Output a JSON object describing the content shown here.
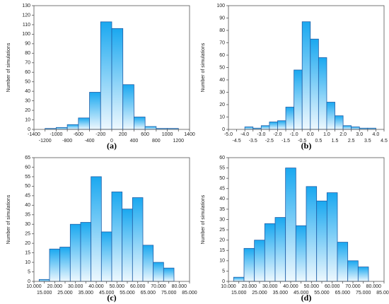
{
  "chart_data": [
    {
      "type": "histogram",
      "caption": "(a)",
      "ylabel": "Number of simulations",
      "color": "#1aa8f0",
      "bins": [
        -1200,
        -1000,
        -800,
        -600,
        -400,
        -200,
        0,
        200,
        400,
        600,
        800,
        1000,
        1200
      ],
      "values": [
        1,
        2,
        5,
        12,
        39,
        113,
        106,
        47,
        13,
        3,
        1,
        1
      ],
      "xlim": [
        -1400,
        1400
      ],
      "xticks": [
        -1400,
        -1200,
        -1000,
        -800,
        -600,
        -400,
        -200,
        0,
        200,
        400,
        600,
        800,
        1000,
        1200,
        1400
      ],
      "ylim": [
        0,
        130
      ],
      "yticks": [
        0,
        10,
        20,
        30,
        40,
        50,
        60,
        70,
        80,
        90,
        100,
        110,
        120,
        130
      ]
    },
    {
      "type": "histogram",
      "caption": "(b)",
      "ylabel": "Number of simulations",
      "color": "#1aa8f0",
      "bins": [
        -4,
        -3.5,
        -3,
        -2.5,
        -2,
        -1.5,
        -1,
        -0.5,
        0,
        0.5,
        1,
        1.5,
        2,
        2.5,
        3,
        3.5,
        4
      ],
      "values": [
        2,
        1,
        3,
        6,
        7,
        18,
        48,
        87,
        73,
        58,
        22,
        11,
        3,
        2,
        1,
        1
      ],
      "xlim": [
        -5,
        4.5
      ],
      "xticks": [
        {
          "value": -5,
          "label": "-5.0"
        },
        -4.5,
        {
          "value": -4,
          "label": "-4.0"
        },
        -3.5,
        {
          "value": -3,
          "label": "-3.0"
        },
        -2.5,
        {
          "value": -2,
          "label": "-2.0"
        },
        -1.5,
        {
          "value": -1,
          "label": "-1.0"
        },
        -0.5,
        {
          "value": 0,
          "label": "0.0"
        },
        0.5,
        {
          "value": 1,
          "label": "1.0"
        },
        1.5,
        {
          "value": 2,
          "label": "2.0"
        },
        2.5,
        {
          "value": 3,
          "label": "3.0"
        },
        3.5,
        {
          "value": 4,
          "label": "4.0"
        },
        4.5
      ],
      "ylim": [
        0,
        100
      ],
      "yticks": [
        0,
        10,
        20,
        30,
        40,
        50,
        60,
        70,
        80,
        90,
        100
      ]
    },
    {
      "type": "histogram",
      "caption": "(c)",
      "ylabel": "Number of simulations",
      "color": "#1aa8f0",
      "bins": [
        12500,
        17500,
        22500,
        27500,
        32500,
        37500,
        42500,
        47500,
        52500,
        57500,
        62500,
        67500,
        72500,
        77500
      ],
      "values": [
        1,
        17,
        18,
        30,
        31,
        55,
        26,
        47,
        38,
        44,
        19,
        10,
        7
      ],
      "xlim": [
        10000,
        85000
      ],
      "xticks": [
        {
          "value": 10000,
          "label": "10.000"
        },
        {
          "value": 15000,
          "label": "15.000"
        },
        {
          "value": 20000,
          "label": "20.000"
        },
        {
          "value": 25000,
          "label": "25.000"
        },
        {
          "value": 30000,
          "label": "30.000"
        },
        {
          "value": 35000,
          "label": "35.000"
        },
        {
          "value": 40000,
          "label": "40.000"
        },
        {
          "value": 45000,
          "label": "45.000"
        },
        {
          "value": 50000,
          "label": "50.000"
        },
        {
          "value": 55000,
          "label": "55.000"
        },
        {
          "value": 60000,
          "label": "60.000"
        },
        {
          "value": 65000,
          "label": "65.000"
        },
        {
          "value": 70000,
          "label": "70.000"
        },
        {
          "value": 75000,
          "label": "75.000"
        },
        {
          "value": 80000,
          "label": "80.000"
        },
        {
          "value": 85000,
          "label": "85.000"
        }
      ],
      "ylim": [
        0,
        65
      ],
      "yticks": [
        0,
        5,
        10,
        15,
        20,
        25,
        30,
        35,
        40,
        45,
        50,
        55,
        60,
        65
      ]
    },
    {
      "type": "histogram",
      "caption": "(d)",
      "ylabel": "Number of simulations",
      "color": "#1aa8f0",
      "bins": [
        12500,
        17500,
        22500,
        27500,
        32500,
        37500,
        42500,
        47500,
        52500,
        57500,
        62500,
        67500,
        72500,
        77500
      ],
      "values": [
        2,
        16,
        20,
        28,
        31,
        55,
        27,
        46,
        39,
        43,
        19,
        10,
        7
      ],
      "xlim": [
        10000,
        85000
      ],
      "xticks": [
        {
          "value": 10000,
          "label": "10.000"
        },
        {
          "value": 15000,
          "label": "15.000"
        },
        {
          "value": 20000,
          "label": "20.000"
        },
        {
          "value": 25000,
          "label": "25.000"
        },
        {
          "value": 30000,
          "label": "30.000"
        },
        {
          "value": 35000,
          "label": "35.000"
        },
        {
          "value": 40000,
          "label": "40.000"
        },
        {
          "value": 45000,
          "label": "45.000"
        },
        {
          "value": 50000,
          "label": "50.000"
        },
        {
          "value": 55000,
          "label": "55.000"
        },
        {
          "value": 60000,
          "label": "60.000"
        },
        {
          "value": 65000,
          "label": "65.000"
        },
        {
          "value": 70000,
          "label": "70.000"
        },
        {
          "value": 75000,
          "label": "75.000"
        },
        {
          "value": 80000,
          "label": "80.000"
        },
        {
          "value": 85000,
          "label": "85.000"
        }
      ],
      "ylim": [
        0,
        60
      ],
      "yticks": [
        0,
        5,
        10,
        15,
        20,
        25,
        30,
        35,
        40,
        45,
        50,
        55,
        60
      ]
    }
  ]
}
